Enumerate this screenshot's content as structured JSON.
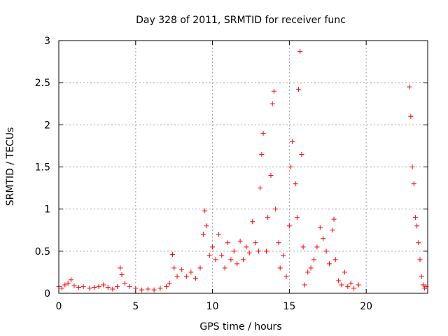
{
  "chart_data": {
    "type": "scatter",
    "title": "Day 328 of 2011, SRMTID for receiver func",
    "xlabel": "GPS time / hours",
    "ylabel": "SRMTID / TECUs",
    "xlim": [
      0,
      24
    ],
    "ylim": [
      0,
      3
    ],
    "x_ticks": [
      "0",
      "5",
      "10",
      "15",
      "20"
    ],
    "y_ticks": [
      "0",
      "0.5",
      "1",
      "1.5",
      "2",
      "2.5",
      "3"
    ],
    "grid": true,
    "marker": "+",
    "series": [
      {
        "color": "#ff0000",
        "points": [
          [
            0.0,
            0.08
          ],
          [
            0.2,
            0.06
          ],
          [
            0.4,
            0.1
          ],
          [
            0.6,
            0.12
          ],
          [
            0.8,
            0.16
          ],
          [
            1.0,
            0.09
          ],
          [
            1.3,
            0.07
          ],
          [
            1.6,
            0.08
          ],
          [
            2.0,
            0.06
          ],
          [
            2.3,
            0.07
          ],
          [
            2.6,
            0.08
          ],
          [
            2.9,
            0.1
          ],
          [
            3.2,
            0.07
          ],
          [
            3.5,
            0.05
          ],
          [
            3.8,
            0.08
          ],
          [
            4.0,
            0.3
          ],
          [
            4.1,
            0.22
          ],
          [
            4.3,
            0.12
          ],
          [
            4.6,
            0.08
          ],
          [
            5.0,
            0.06
          ],
          [
            5.4,
            0.04
          ],
          [
            5.8,
            0.05
          ],
          [
            6.2,
            0.04
          ],
          [
            6.6,
            0.06
          ],
          [
            7.0,
            0.08
          ],
          [
            7.2,
            0.12
          ],
          [
            7.4,
            0.46
          ],
          [
            7.5,
            0.3
          ],
          [
            7.7,
            0.2
          ],
          [
            8.0,
            0.28
          ],
          [
            8.3,
            0.2
          ],
          [
            8.6,
            0.25
          ],
          [
            8.9,
            0.18
          ],
          [
            9.2,
            0.3
          ],
          [
            9.4,
            0.7
          ],
          [
            9.5,
            0.98
          ],
          [
            9.6,
            0.8
          ],
          [
            9.8,
            0.45
          ],
          [
            10.0,
            0.55
          ],
          [
            10.2,
            0.4
          ],
          [
            10.4,
            0.7
          ],
          [
            10.6,
            0.45
          ],
          [
            10.8,
            0.3
          ],
          [
            11.0,
            0.6
          ],
          [
            11.2,
            0.4
          ],
          [
            11.4,
            0.5
          ],
          [
            11.6,
            0.35
          ],
          [
            11.8,
            0.62
          ],
          [
            12.0,
            0.4
          ],
          [
            12.2,
            0.55
          ],
          [
            12.4,
            0.48
          ],
          [
            12.6,
            0.85
          ],
          [
            12.8,
            0.6
          ],
          [
            13.0,
            0.5
          ],
          [
            13.1,
            1.25
          ],
          [
            13.2,
            1.65
          ],
          [
            13.3,
            1.9
          ],
          [
            13.5,
            0.5
          ],
          [
            13.6,
            0.9
          ],
          [
            13.8,
            1.4
          ],
          [
            13.9,
            2.25
          ],
          [
            14.0,
            2.4
          ],
          [
            14.1,
            1.0
          ],
          [
            14.3,
            0.6
          ],
          [
            14.4,
            0.3
          ],
          [
            14.6,
            0.45
          ],
          [
            14.8,
            0.2
          ],
          [
            15.0,
            0.8
          ],
          [
            15.1,
            1.5
          ],
          [
            15.2,
            1.8
          ],
          [
            15.4,
            1.3
          ],
          [
            15.5,
            0.9
          ],
          [
            15.6,
            2.42
          ],
          [
            15.7,
            2.87
          ],
          [
            15.8,
            1.65
          ],
          [
            15.9,
            0.55
          ],
          [
            16.0,
            0.1
          ],
          [
            16.2,
            0.25
          ],
          [
            16.4,
            0.3
          ],
          [
            16.6,
            0.4
          ],
          [
            16.8,
            0.55
          ],
          [
            17.0,
            0.78
          ],
          [
            17.2,
            0.65
          ],
          [
            17.4,
            0.5
          ],
          [
            17.6,
            0.35
          ],
          [
            17.8,
            0.75
          ],
          [
            17.9,
            0.88
          ],
          [
            18.0,
            0.4
          ],
          [
            18.2,
            0.15
          ],
          [
            18.4,
            0.1
          ],
          [
            18.6,
            0.25
          ],
          [
            18.8,
            0.08
          ],
          [
            19.0,
            0.12
          ],
          [
            19.2,
            0.06
          ],
          [
            19.5,
            0.1
          ],
          [
            22.8,
            2.45
          ],
          [
            22.9,
            2.1
          ],
          [
            23.0,
            1.5
          ],
          [
            23.1,
            1.3
          ],
          [
            23.2,
            0.9
          ],
          [
            23.3,
            0.8
          ],
          [
            23.4,
            0.6
          ],
          [
            23.5,
            0.4
          ],
          [
            23.6,
            0.2
          ],
          [
            23.7,
            0.1
          ],
          [
            23.8,
            0.06
          ],
          [
            23.9,
            0.08
          ]
        ]
      }
    ]
  }
}
